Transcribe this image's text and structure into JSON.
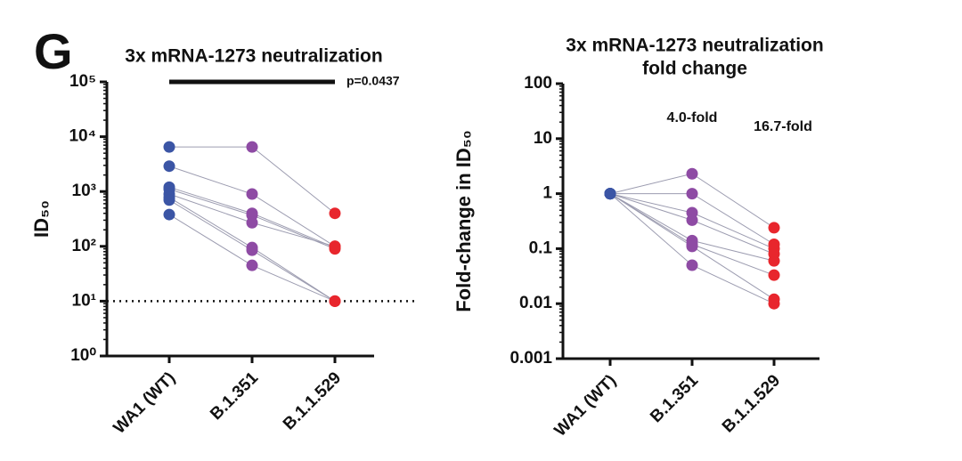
{
  "panel_label": "G",
  "chart_data": [
    {
      "type": "line",
      "title": [
        "3x mRNA-1273 neutralization"
      ],
      "ylabel": "ID₅₀",
      "categories": [
        "WA1 (WT)",
        "B.1.351",
        "B.1.1.529"
      ],
      "log_scale": true,
      "ylim": [
        1,
        100000
      ],
      "yticks": [
        {
          "value": 1,
          "label": "10⁰"
        },
        {
          "value": 10,
          "label": "10¹"
        },
        {
          "value": 100,
          "label": "10²"
        },
        {
          "value": 1000,
          "label": "10³"
        },
        {
          "value": 10000,
          "label": "10⁴"
        },
        {
          "value": 100000,
          "label": "10⁵"
        }
      ],
      "reference_line": 10,
      "annotations": [
        "p=0.0437"
      ],
      "line_color": "#9c9cb0",
      "point_colors": [
        "#3b55a5",
        "#8e4ba4",
        "#e8262d"
      ],
      "series": [
        {
          "values": [
            6500,
            6500,
            400
          ]
        },
        {
          "values": [
            2900,
            900,
            100
          ]
        },
        {
          "values": [
            1200,
            400,
            95
          ]
        },
        {
          "values": [
            1100,
            370,
            90
          ]
        },
        {
          "values": [
            900,
            270,
            100
          ]
        },
        {
          "values": [
            780,
            95,
            10
          ]
        },
        {
          "values": [
            700,
            85,
            10
          ]
        },
        {
          "values": [
            380,
            45,
            10
          ]
        }
      ]
    },
    {
      "type": "line",
      "title": [
        "3x mRNA-1273 neutralization",
        "fold change"
      ],
      "ylabel": "Fold-change in ID₅₀",
      "categories": [
        "WA1 (WT)",
        "B.1.351",
        "B.1.1.529"
      ],
      "log_scale": true,
      "ylim": [
        0.001,
        100
      ],
      "yticks": [
        0.001,
        0.01,
        0.1,
        1,
        10,
        100
      ],
      "annotations": [
        "4.0-fold",
        "16.7-fold"
      ],
      "line_color": "#9c9cb0",
      "point_colors": [
        "#3b55a5",
        "#8e4ba4",
        "#e8262d"
      ],
      "series": [
        {
          "values": [
            1,
            2.3,
            0.24
          ]
        },
        {
          "values": [
            1,
            1,
            0.12
          ]
        },
        {
          "values": [
            1,
            0.45,
            0.1
          ]
        },
        {
          "values": [
            1,
            0.33,
            0.08
          ]
        },
        {
          "values": [
            1,
            0.14,
            0.06
          ]
        },
        {
          "values": [
            1,
            0.12,
            0.033
          ]
        },
        {
          "values": [
            1,
            0.11,
            0.012
          ]
        },
        {
          "values": [
            1,
            0.05,
            0.01
          ]
        }
      ]
    }
  ]
}
